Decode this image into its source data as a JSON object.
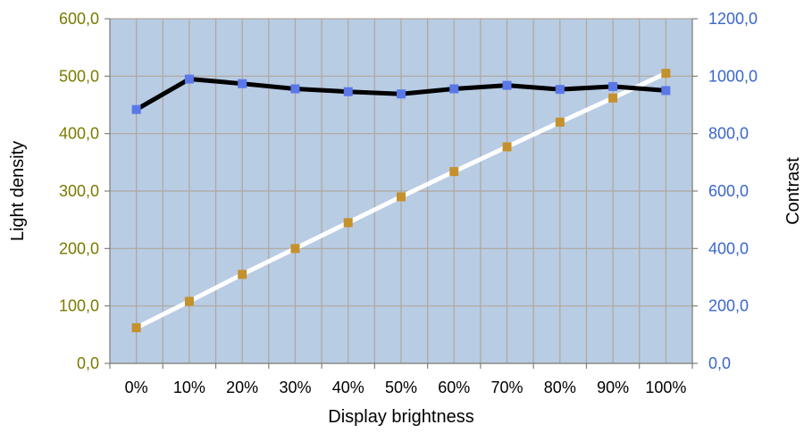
{
  "chart_data": {
    "type": "line",
    "title": "",
    "xlabel": "Display brightness",
    "ylabel": "Light density",
    "y2label": "Contrast",
    "categories": [
      "0%",
      "10%",
      "20%",
      "30%",
      "40%",
      "50%",
      "60%",
      "70%",
      "80%",
      "90%",
      "100%"
    ],
    "ylim": [
      0,
      600
    ],
    "y2lim": [
      0,
      1200
    ],
    "yticks": [
      "0,0",
      "100,0",
      "200,0",
      "300,0",
      "400,0",
      "500,0",
      "600,0"
    ],
    "y2ticks": [
      "0,0",
      "200,0",
      "400,0",
      "600,0",
      "800,0",
      "1000,0",
      "1200,0"
    ],
    "grid": true,
    "legend": "none",
    "series": [
      {
        "axis": "left",
        "values": [
          62,
          108,
          155,
          200,
          245,
          290,
          334,
          377,
          420,
          462,
          505
        ],
        "line_color": "#ffffff",
        "marker_color": "#c4912c"
      },
      {
        "axis": "right",
        "values": [
          884,
          990,
          974,
          956,
          946,
          938,
          956,
          968,
          954,
          964,
          950
        ],
        "line_color": "#000000",
        "marker_color": "#5a78e8"
      }
    ],
    "colors": {
      "plot_background": "#b8cce4",
      "grid": "#b0a79a",
      "left_axis_text": "#7a7a00",
      "right_axis_text": "#3a66cc"
    }
  }
}
